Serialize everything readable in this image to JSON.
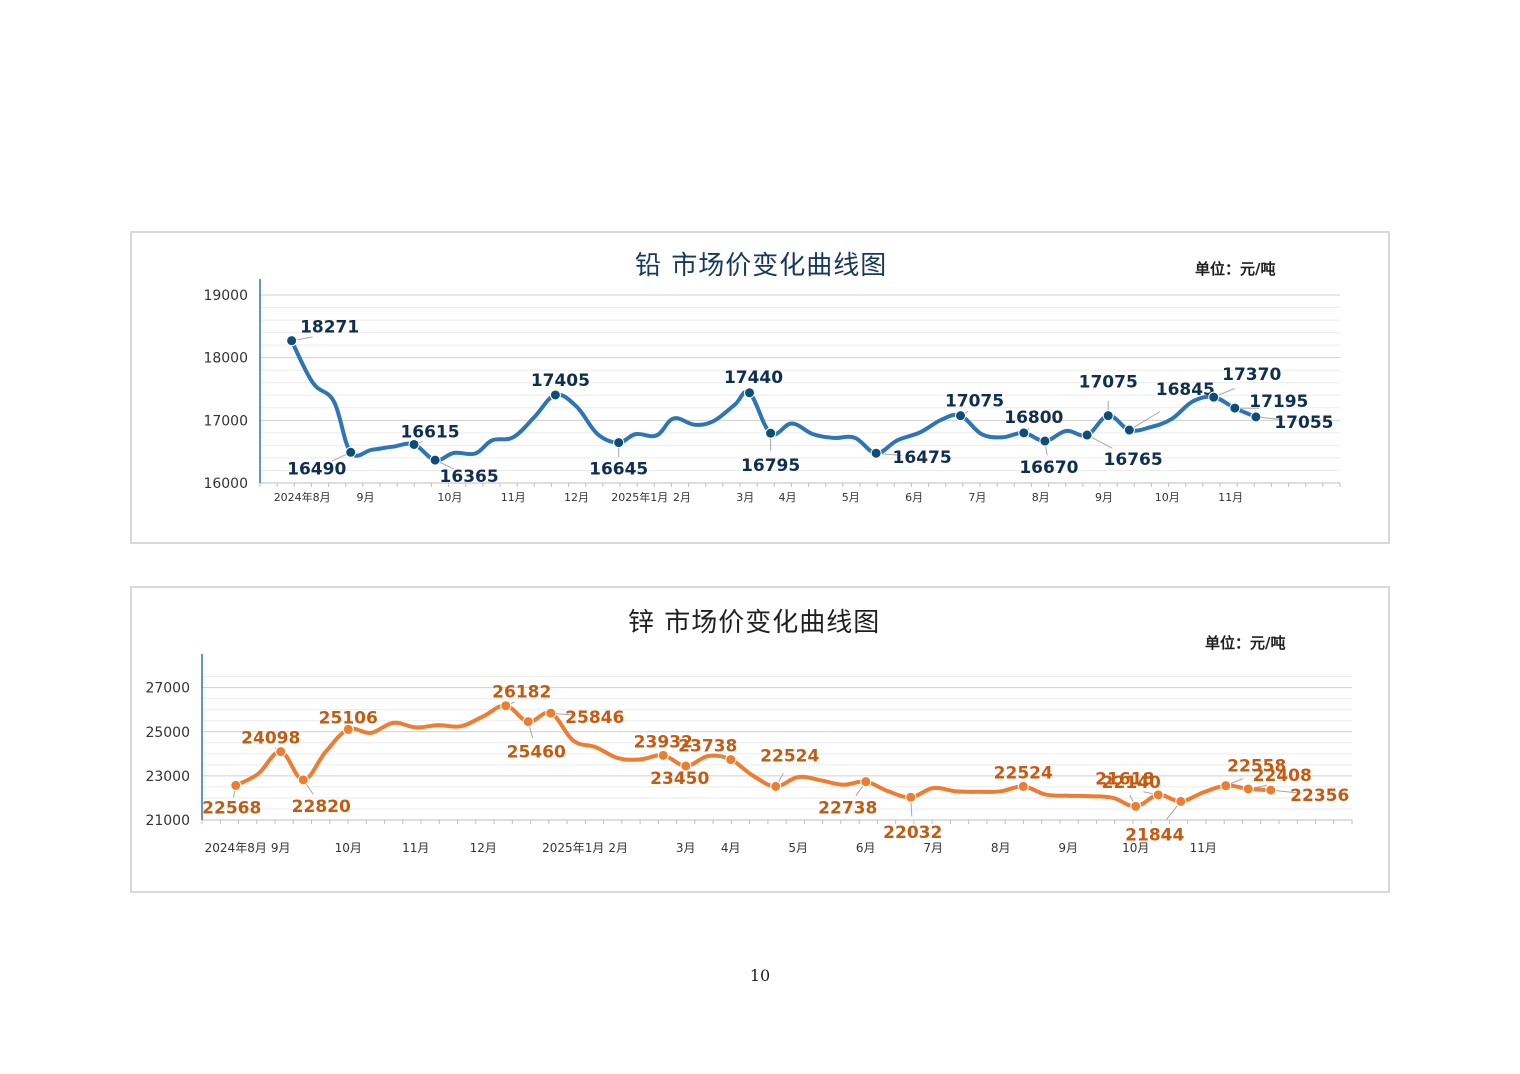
{
  "page_number": "10",
  "colors": {
    "lead_line": "#2e75b6",
    "lead_marker": "#0e4d75",
    "lead_label": "#0f2f4f",
    "zinc_line": "#ed7d31",
    "zinc_label": "#c55a11",
    "grid": "#d9d9d9",
    "axis": "#2e75b6"
  },
  "chart_data": [
    {
      "id": "lead",
      "type": "line",
      "title": "铅  市场价变化曲线图",
      "unit": "单位：元/吨",
      "ylim": [
        16000,
        19000
      ],
      "yticks": [
        16000,
        17000,
        18000,
        19000
      ],
      "x_count": 63,
      "x_month_labels": [
        {
          "x": 2,
          "label": "2024年8月"
        },
        {
          "x": 5,
          "label": "9月"
        },
        {
          "x": 9,
          "label": "10月"
        },
        {
          "x": 12,
          "label": "11月"
        },
        {
          "x": 15,
          "label": "12月"
        },
        {
          "x": 18,
          "label": "2025年1月"
        },
        {
          "x": 20,
          "label": "2月"
        },
        {
          "x": 23,
          "label": "3月"
        },
        {
          "x": 25,
          "label": "4月"
        },
        {
          "x": 28,
          "label": "5月"
        },
        {
          "x": 31,
          "label": "6月"
        },
        {
          "x": 34,
          "label": "7月"
        },
        {
          "x": 37,
          "label": "8月"
        },
        {
          "x": 40,
          "label": "9月"
        },
        {
          "x": 43,
          "label": "10月"
        },
        {
          "x": 46,
          "label": "11月"
        }
      ],
      "series": [
        {
          "name": "铅价",
          "points": [
            [
              1.5,
              18271
            ],
            [
              2.5,
              17600
            ],
            [
              3.5,
              17300
            ],
            [
              4.3,
              16490
            ],
            [
              5.3,
              16530
            ],
            [
              6.3,
              16580
            ],
            [
              7.3,
              16615
            ],
            [
              8.3,
              16365
            ],
            [
              9.2,
              16480
            ],
            [
              10.2,
              16470
            ],
            [
              11,
              16680
            ],
            [
              12,
              16730
            ],
            [
              13,
              17050
            ],
            [
              14,
              17405
            ],
            [
              15,
              17220
            ],
            [
              16,
              16780
            ],
            [
              17,
              16645
            ],
            [
              17.8,
              16780
            ],
            [
              18.8,
              16760
            ],
            [
              19.6,
              17030
            ],
            [
              20.6,
              16930
            ],
            [
              21.5,
              16990
            ],
            [
              22.5,
              17250
            ],
            [
              23.2,
              17440
            ],
            [
              24.2,
              16795
            ],
            [
              25.2,
              16950
            ],
            [
              26.2,
              16780
            ],
            [
              27.2,
              16720
            ],
            [
              28.2,
              16720
            ],
            [
              29.2,
              16475
            ],
            [
              30.2,
              16680
            ],
            [
              31.3,
              16810
            ],
            [
              32.3,
              17010
            ],
            [
              33.2,
              17075
            ],
            [
              34.2,
              16780
            ],
            [
              35.2,
              16730
            ],
            [
              36.2,
              16800
            ],
            [
              37.2,
              16670
            ],
            [
              38.2,
              16830
            ],
            [
              39.2,
              16765
            ],
            [
              40.2,
              17075
            ],
            [
              41.2,
              16845
            ],
            [
              42.2,
              16890
            ],
            [
              43.2,
              17020
            ],
            [
              44.2,
              17300
            ],
            [
              45.2,
              17370
            ],
            [
              46.2,
              17195
            ],
            [
              47.2,
              17055
            ]
          ]
        }
      ],
      "data_labels": [
        {
          "x": 1.5,
          "y": 18271,
          "text": "18271"
        },
        {
          "x": 4.3,
          "y": 16490,
          "text": "16490"
        },
        {
          "x": 7.3,
          "y": 16615,
          "text": "16615"
        },
        {
          "x": 8.3,
          "y": 16365,
          "text": "16365"
        },
        {
          "x": 14,
          "y": 17405,
          "text": "17405"
        },
        {
          "x": 17,
          "y": 16645,
          "text": "16645"
        },
        {
          "x": 23.2,
          "y": 17440,
          "text": "17440"
        },
        {
          "x": 24.2,
          "y": 16795,
          "text": "16795"
        },
        {
          "x": 29.2,
          "y": 16475,
          "text": "16475"
        },
        {
          "x": 33.2,
          "y": 17075,
          "text": "17075"
        },
        {
          "x": 36.2,
          "y": 16800,
          "text": "16800"
        },
        {
          "x": 37.2,
          "y": 16670,
          "text": "16670"
        },
        {
          "x": 39.2,
          "y": 16765,
          "text": "16765"
        },
        {
          "x": 40.2,
          "y": 17075,
          "text": "17075"
        },
        {
          "x": 41.2,
          "y": 16845,
          "text": "16845"
        },
        {
          "x": 45.2,
          "y": 17370,
          "text": "17370"
        },
        {
          "x": 46.2,
          "y": 17195,
          "text": "17195"
        },
        {
          "x": 47.2,
          "y": 17055,
          "text": "17055"
        }
      ]
    },
    {
      "id": "zinc",
      "type": "line",
      "title": "锌  市场价变化曲线图",
      "unit": "单位：元/吨",
      "ylim": [
        21000,
        27800
      ],
      "yticks": [
        21000,
        23000,
        25000,
        27000
      ],
      "x_count": 63,
      "x_month_labels": [
        {
          "x": 1.5,
          "label": "2024年8月"
        },
        {
          "x": 3.5,
          "label": "9月"
        },
        {
          "x": 6.5,
          "label": "10月"
        },
        {
          "x": 9.5,
          "label": "11月"
        },
        {
          "x": 12.5,
          "label": "12月"
        },
        {
          "x": 16.5,
          "label": "2025年1月"
        },
        {
          "x": 18.5,
          "label": "2月"
        },
        {
          "x": 21.5,
          "label": "3月"
        },
        {
          "x": 23.5,
          "label": "4月"
        },
        {
          "x": 26.5,
          "label": "5月"
        },
        {
          "x": 29.5,
          "label": "6月"
        },
        {
          "x": 32.5,
          "label": "7月"
        },
        {
          "x": 35.5,
          "label": "8月"
        },
        {
          "x": 38.5,
          "label": "9月"
        },
        {
          "x": 41.5,
          "label": "10月"
        },
        {
          "x": 44.5,
          "label": "11月"
        }
      ],
      "series": [
        {
          "name": "锌价",
          "points": [
            [
              1.5,
              22568
            ],
            [
              2.5,
              23100
            ],
            [
              3.5,
              24098
            ],
            [
              4.5,
              22820
            ],
            [
              5.5,
              24100
            ],
            [
              6.5,
              25106
            ],
            [
              7.5,
              24950
            ],
            [
              8.5,
              25400
            ],
            [
              9.5,
              25200
            ],
            [
              10.5,
              25300
            ],
            [
              11.5,
              25250
            ],
            [
              12.5,
              25700
            ],
            [
              13.5,
              26182
            ],
            [
              14.5,
              25460
            ],
            [
              15.5,
              25846
            ],
            [
              16.5,
              24600
            ],
            [
              17.5,
              24300
            ],
            [
              18.5,
              23800
            ],
            [
              19.5,
              23750
            ],
            [
              20.5,
              23932
            ],
            [
              21.5,
              23450
            ],
            [
              22.5,
              23900
            ],
            [
              23.5,
              23738
            ],
            [
              24.5,
              23000
            ],
            [
              25.5,
              22524
            ],
            [
              26.5,
              22950
            ],
            [
              27.5,
              22800
            ],
            [
              28.5,
              22600
            ],
            [
              29.5,
              22738
            ],
            [
              30.5,
              22300
            ],
            [
              31.5,
              22032
            ],
            [
              32.5,
              22450
            ],
            [
              33.5,
              22300
            ],
            [
              34.5,
              22280
            ],
            [
              35.5,
              22300
            ],
            [
              36.5,
              22524
            ],
            [
              37.5,
              22150
            ],
            [
              38.5,
              22100
            ],
            [
              39.5,
              22080
            ],
            [
              40.5,
              22000
            ],
            [
              41.5,
              21618
            ],
            [
              42.5,
              22140
            ],
            [
              43.5,
              21844
            ],
            [
              44.5,
              22250
            ],
            [
              45.5,
              22558
            ],
            [
              46.5,
              22408
            ],
            [
              47.5,
              22356
            ]
          ]
        }
      ],
      "data_labels": [
        {
          "x": 1.5,
          "y": 22568,
          "text": "22568"
        },
        {
          "x": 3.5,
          "y": 24098,
          "text": "24098"
        },
        {
          "x": 4.5,
          "y": 22820,
          "text": "22820"
        },
        {
          "x": 6.5,
          "y": 25106,
          "text": "25106"
        },
        {
          "x": 13.5,
          "y": 26182,
          "text": "26182"
        },
        {
          "x": 14.5,
          "y": 25460,
          "text": "25460"
        },
        {
          "x": 15.5,
          "y": 25846,
          "text": "25846"
        },
        {
          "x": 20.5,
          "y": 23932,
          "text": "23932"
        },
        {
          "x": 21.5,
          "y": 23450,
          "text": "23450"
        },
        {
          "x": 23.5,
          "y": 23738,
          "text": "23738"
        },
        {
          "x": 25.5,
          "y": 22524,
          "text": "22524"
        },
        {
          "x": 29.5,
          "y": 22738,
          "text": "22738"
        },
        {
          "x": 31.5,
          "y": 22032,
          "text": "22032"
        },
        {
          "x": 36.5,
          "y": 22524,
          "text": "22524"
        },
        {
          "x": 41.5,
          "y": 21618,
          "text": "21618"
        },
        {
          "x": 42.5,
          "y": 22140,
          "text": "22140"
        },
        {
          "x": 43.5,
          "y": 21844,
          "text": "21844"
        },
        {
          "x": 45.5,
          "y": 22558,
          "text": "22558"
        },
        {
          "x": 46.5,
          "y": 22408,
          "text": "22408"
        },
        {
          "x": 47.5,
          "y": 22356,
          "text": "22356"
        }
      ]
    }
  ]
}
